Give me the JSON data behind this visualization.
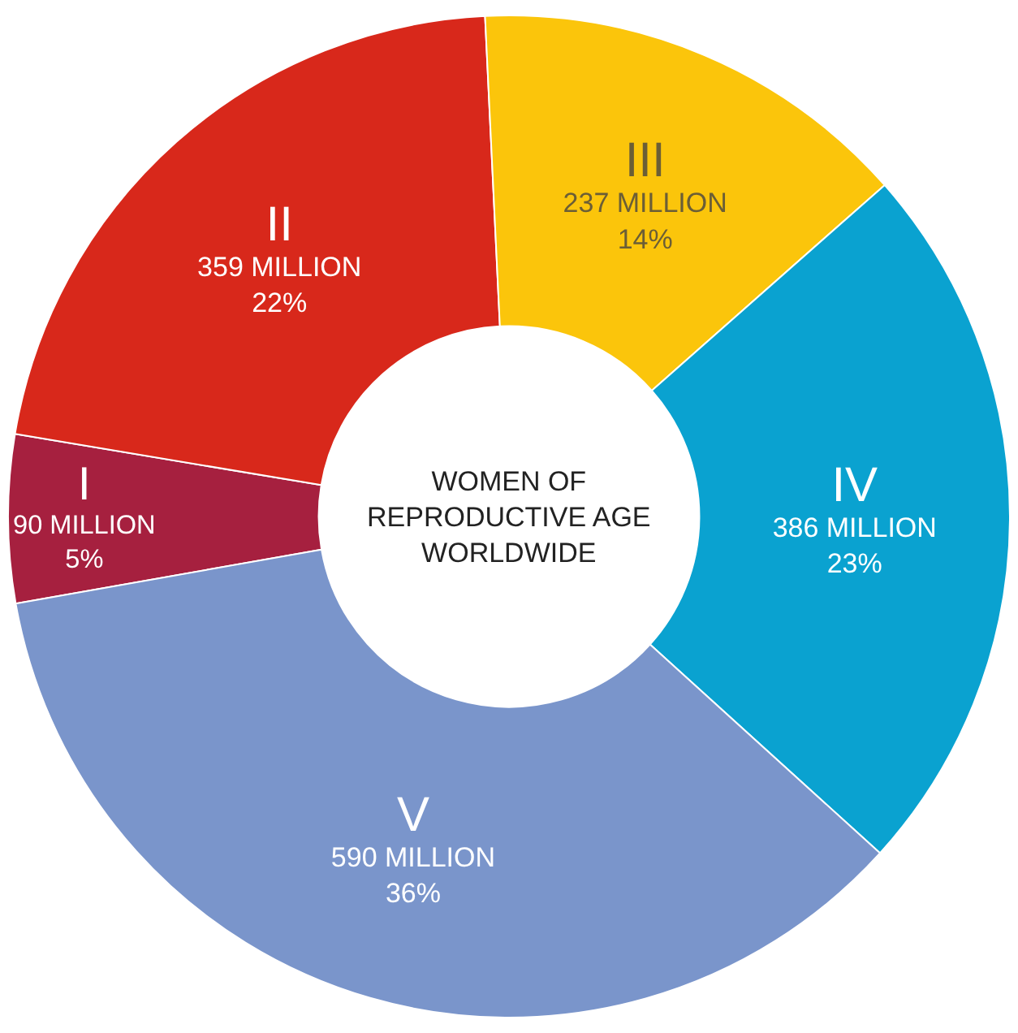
{
  "chart_data": {
    "type": "donut",
    "title": "WOMEN OF\nREPRODUCTIVE AGE\nWORLDWIDE",
    "categories": [
      "I",
      "II",
      "III",
      "IV",
      "V"
    ],
    "values": [
      90,
      359,
      237,
      386,
      590
    ],
    "value_labels": [
      "90 MILLION\n5%",
      "359 MILLION\n22%",
      "237 MILLION\n14%",
      "386 MILLION\n23%",
      "590 MILLION\n36%"
    ],
    "colors": [
      "#a6203f",
      "#d8281b",
      "#fbc50b",
      "#0aa2d0",
      "#7a95cb"
    ],
    "legend": false
  }
}
